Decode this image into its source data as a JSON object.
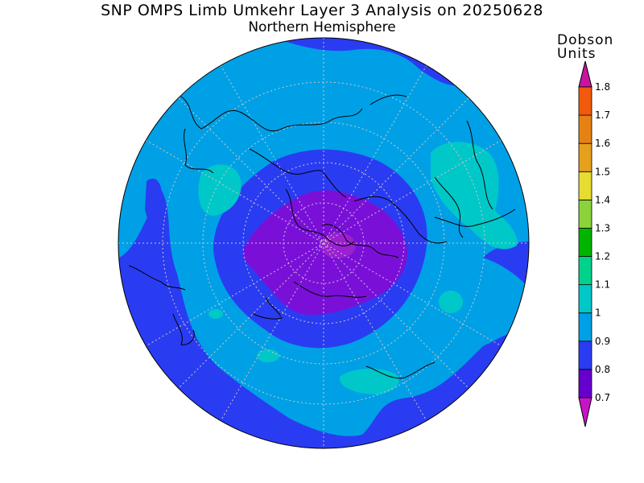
{
  "title": "SNP OMPS Limb Umkehr Layer 3 Analysis on 20250628",
  "subtitle": "Northern Hemisphere",
  "colorbar": {
    "units_line1": "Dobson",
    "units_line2": "Units",
    "levels": [
      {
        "label": "0.7",
        "color": "#6600cc"
      },
      {
        "label": "0.8",
        "color": "#2a3cf2"
      },
      {
        "label": "0.9",
        "color": "#00a0e6"
      },
      {
        "label": "1",
        "color": "#00c8c8"
      },
      {
        "label": "1.1",
        "color": "#00d28c"
      },
      {
        "label": "1.2",
        "color": "#00b400"
      },
      {
        "label": "1.3",
        "color": "#8cd23c"
      },
      {
        "label": "1.4",
        "color": "#e6dc32"
      },
      {
        "label": "1.5",
        "color": "#e6a01e"
      },
      {
        "label": "1.6",
        "color": "#e68214"
      },
      {
        "label": "1.7",
        "color": "#f05a0a"
      },
      {
        "label": "1.8",
        "color": "#e60000"
      }
    ],
    "under_color": "#c814c8",
    "over_color": "#c814a0"
  },
  "map_colors": {
    "ocean_base": "#00a0e6",
    "low_band": "#2a3cf2",
    "lowest": "#7a10d8",
    "min_core": "#9a20d0",
    "high": "#00c8c8",
    "coast": "#000000",
    "grid": "#c8c8c8"
  }
}
